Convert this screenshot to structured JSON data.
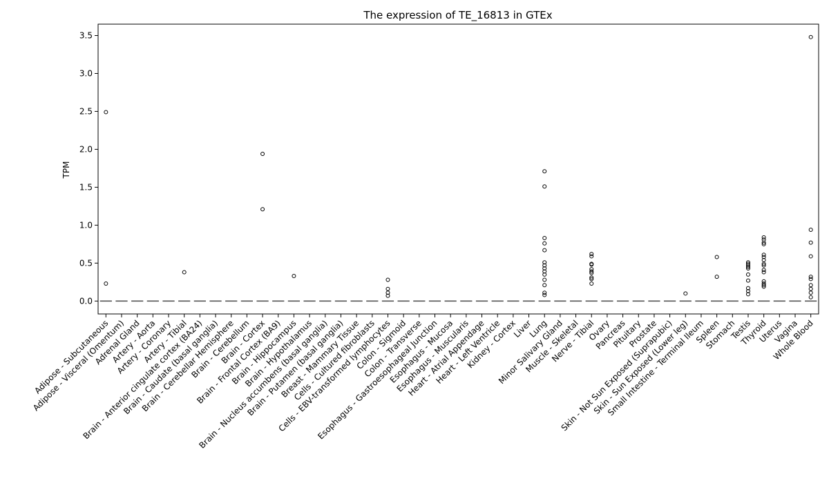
{
  "chart_data": {
    "type": "box",
    "title": "The expression of TE_16813 in GTEx",
    "xlabel": "",
    "ylabel": "TPM",
    "ylim": [
      -0.17,
      3.65
    ],
    "yticks": [
      0.0,
      0.5,
      1.0,
      1.5,
      2.0,
      2.5,
      3.0,
      3.5
    ],
    "ytick_labels": [
      "0.0",
      "0.5",
      "1.0",
      "1.5",
      "2.0",
      "2.5",
      "3.0",
      "3.5"
    ],
    "grid": false,
    "legend": "none",
    "median_color": "#555555",
    "categories": [
      "Adipose - Subcutaneous",
      "Adipose - Visceral (Omentum)",
      "Adrenal Gland",
      "Artery - Aorta",
      "Artery - Coronary",
      "Artery - Tibial",
      "Brain - Anterior cingulate cortex (BA24)",
      "Brain - Caudate (basal ganglia)",
      "Brain - Cerebellar Hemisphere",
      "Brain - Cerebellum",
      "Brain - Cortex",
      "Brain - Frontal Cortex (BA9)",
      "Brain - Hippocampus",
      "Brain - Hypothalamus",
      "Brain - Nucleus accumbens (basal ganglia)",
      "Brain - Putamen (basal ganglia)",
      "Breast - Mammary Tissue",
      "Cells - Cultured fibroblasts",
      "Cells - EBV-transformed lymphocytes",
      "Colon - Sigmoid",
      "Colon - Transverse",
      "Esophagus - Gastroesophageal Junction",
      "Esophagus - Mucosa",
      "Esophagus - Muscularis",
      "Heart - Atrial Appendage",
      "Heart - Left Ventricle",
      "Kidney - Cortex",
      "Liver",
      "Lung",
      "Minor Salivary Gland",
      "Muscle - Skeletal",
      "Nerve - Tibial",
      "Ovary",
      "Pancreas",
      "Pituitary",
      "Prostate",
      "Skin - Not Sun Exposed (Suprapubic)",
      "Skin - Sun Exposed (Lower leg)",
      "Small Intestine - Terminal Ileum",
      "Spleen",
      "Stomach",
      "Testis",
      "Thyroid",
      "Uterus",
      "Vagina",
      "Whole Blood"
    ],
    "medians": [
      0,
      0,
      0,
      0,
      0,
      0,
      0,
      0,
      0,
      0,
      0,
      0,
      0,
      0,
      0,
      0,
      0,
      0,
      0,
      0,
      0,
      0,
      0,
      0,
      0,
      0,
      0,
      0,
      0,
      0,
      0,
      0,
      0,
      0,
      0,
      0,
      0,
      0,
      0,
      0,
      0,
      0,
      0,
      0,
      0,
      0
    ],
    "outliers": [
      [
        2.49,
        0.23
      ],
      [],
      [],
      [],
      [],
      [
        0.38
      ],
      [],
      [],
      [],
      [],
      [
        1.94,
        1.21
      ],
      [],
      [
        0.33
      ],
      [],
      [],
      [],
      [],
      [],
      [
        0.28,
        0.16,
        0.11,
        0.07
      ],
      [],
      [],
      [],
      [],
      [],
      [],
      [],
      [],
      [],
      [
        1.71,
        1.51,
        0.83,
        0.76,
        0.67,
        0.51,
        0.47,
        0.43,
        0.39,
        0.35,
        0.28,
        0.21,
        0.11,
        0.08
      ],
      [],
      [],
      [
        0.62,
        0.59,
        0.49,
        0.48,
        0.42,
        0.39,
        0.37,
        0.31,
        0.29,
        0.23
      ],
      [],
      [],
      [],
      [],
      [],
      [
        0.1
      ],
      [],
      [
        0.58,
        0.32
      ],
      [],
      [
        0.51,
        0.49,
        0.47,
        0.45,
        0.43,
        0.35,
        0.27,
        0.17,
        0.13,
        0.09
      ],
      [
        0.84,
        0.81,
        0.77,
        0.75,
        0.61,
        0.58,
        0.54,
        0.49,
        0.47,
        0.41,
        0.38,
        0.26,
        0.23,
        0.21,
        0.19
      ],
      [],
      [],
      [
        3.48,
        0.94,
        0.77,
        0.59,
        0.32,
        0.29,
        0.21,
        0.16,
        0.11,
        0.05
      ]
    ]
  }
}
